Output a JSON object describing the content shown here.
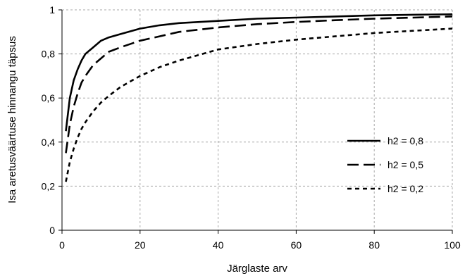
{
  "chart_data": {
    "type": "line",
    "xlabel": "Järglaste arv",
    "ylabel": "Isa aretusväärtuse hinnangu täpsus",
    "xlim": [
      0,
      100
    ],
    "ylim": [
      0,
      1
    ],
    "x_ticks": [
      0,
      20,
      40,
      60,
      80,
      100
    ],
    "y_ticks": [
      0,
      0.2,
      0.4,
      0.6,
      0.8,
      1
    ],
    "x_tick_labels": [
      "0",
      "20",
      "40",
      "60",
      "80",
      "100"
    ],
    "y_tick_labels": [
      "0",
      "0,2",
      "0,4",
      "0,6",
      "0,8",
      "1"
    ],
    "grid": true,
    "legend_position": "right",
    "series": [
      {
        "name": "h2 = 0,8",
        "style": "solid",
        "x": [
          1,
          2,
          3,
          4,
          5,
          6,
          8,
          10,
          12,
          15,
          20,
          25,
          30,
          40,
          50,
          60,
          70,
          80,
          90,
          100
        ],
        "values": [
          0.45,
          0.6,
          0.68,
          0.73,
          0.77,
          0.8,
          0.83,
          0.86,
          0.875,
          0.89,
          0.915,
          0.93,
          0.94,
          0.95,
          0.96,
          0.965,
          0.97,
          0.975,
          0.978,
          0.98
        ]
      },
      {
        "name": "h2 = 0,5",
        "style": "dashed",
        "x": [
          1,
          2,
          3,
          4,
          5,
          6,
          8,
          10,
          12,
          15,
          20,
          25,
          30,
          40,
          50,
          60,
          70,
          80,
          90,
          100
        ],
        "values": [
          0.35,
          0.48,
          0.56,
          0.62,
          0.67,
          0.7,
          0.75,
          0.78,
          0.81,
          0.83,
          0.86,
          0.88,
          0.9,
          0.92,
          0.935,
          0.945,
          0.953,
          0.96,
          0.965,
          0.97
        ]
      },
      {
        "name": "h2 = 0,2",
        "style": "short-dash",
        "x": [
          1,
          2,
          3,
          4,
          5,
          6,
          8,
          10,
          12,
          15,
          20,
          25,
          30,
          40,
          50,
          60,
          70,
          80,
          90,
          100
        ],
        "values": [
          0.22,
          0.31,
          0.37,
          0.42,
          0.46,
          0.49,
          0.54,
          0.58,
          0.61,
          0.65,
          0.7,
          0.74,
          0.77,
          0.82,
          0.845,
          0.865,
          0.88,
          0.895,
          0.905,
          0.915
        ]
      }
    ]
  }
}
